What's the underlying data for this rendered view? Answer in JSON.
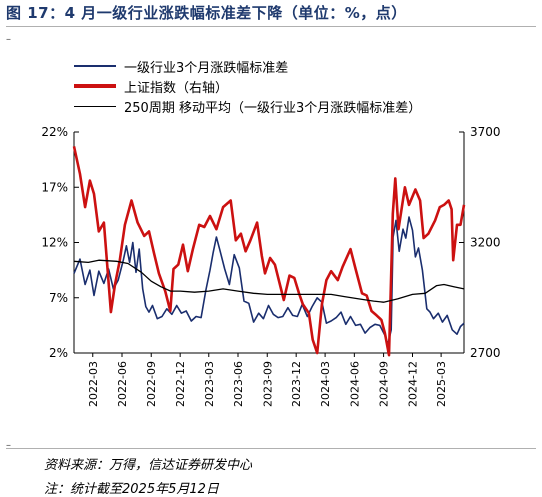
{
  "header": {
    "title": "图 17：4 月一级行业涨跌幅标准差下降（单位：%，点）"
  },
  "footer": {
    "source": "资料来源：万得，信达证券研发中心",
    "note": "注：统计截至2025年5月12日"
  },
  "colors": {
    "title": "#1f3a6e",
    "std_series": "#1a2e6e",
    "index_series": "#cc1111",
    "ma_series": "#000000"
  },
  "chart_data": {
    "type": "line",
    "title": "",
    "legend": {
      "placement": "top-left",
      "entries": [
        "一级行业3个月涨跌幅标准差",
        "上证指数（右轴）",
        "250周期 移动平均（一级行业3个月涨跌幅标准差）"
      ]
    },
    "x_ticks": [
      "2022-03",
      "2022-06",
      "2022-09",
      "2022-12",
      "2023-03",
      "2023-06",
      "2023-09",
      "2023-12",
      "2024-03",
      "2024-06",
      "2024-09",
      "2024-12",
      "2025-03"
    ],
    "y_left": {
      "ylim": [
        2,
        22
      ],
      "ticks": [
        2,
        7,
        12,
        17,
        22
      ],
      "tick_labels": [
        "2%",
        "7%",
        "12%",
        "17%",
        "22%"
      ]
    },
    "y_right": {
      "ylim": [
        2700,
        3700
      ],
      "ticks": [
        2700,
        3200,
        3700
      ],
      "tick_labels": [
        "2700",
        "3200",
        "3700"
      ]
    },
    "x_range": [
      "2022-01-01",
      "2025-05-12"
    ],
    "series": [
      {
        "name": "一级行业3个月涨跌幅标准差",
        "axis": "left",
        "color": "#1a2e6e",
        "points": [
          [
            "2022-01-01",
            9.2
          ],
          [
            "2022-01-20",
            10.5
          ],
          [
            "2022-02-05",
            8.2
          ],
          [
            "2022-02-20",
            9.5
          ],
          [
            "2022-03-05",
            7.2
          ],
          [
            "2022-03-20",
            9.4
          ],
          [
            "2022-04-05",
            8.3
          ],
          [
            "2022-04-20",
            9.6
          ],
          [
            "2022-05-05",
            7.8
          ],
          [
            "2022-05-20",
            8.6
          ],
          [
            "2022-06-05",
            10.4
          ],
          [
            "2022-06-15",
            11.7
          ],
          [
            "2022-06-25",
            10.2
          ],
          [
            "2022-07-05",
            12.0
          ],
          [
            "2022-07-15",
            9.3
          ],
          [
            "2022-07-25",
            11.4
          ],
          [
            "2022-08-05",
            7.8
          ],
          [
            "2022-08-15",
            6.2
          ],
          [
            "2022-08-25",
            5.7
          ],
          [
            "2022-09-05",
            6.3
          ],
          [
            "2022-09-20",
            5.1
          ],
          [
            "2022-10-05",
            5.3
          ],
          [
            "2022-10-20",
            6.0
          ],
          [
            "2022-11-05",
            5.5
          ],
          [
            "2022-11-20",
            6.3
          ],
          [
            "2022-12-05",
            5.6
          ],
          [
            "2022-12-20",
            5.8
          ],
          [
            "2023-01-05",
            4.9
          ],
          [
            "2023-01-20",
            5.3
          ],
          [
            "2023-02-05",
            5.2
          ],
          [
            "2023-02-20",
            7.7
          ],
          [
            "2023-03-05",
            9.5
          ],
          [
            "2023-03-15",
            11.1
          ],
          [
            "2023-03-25",
            12.5
          ],
          [
            "2023-04-05",
            11.3
          ],
          [
            "2023-04-20",
            9.6
          ],
          [
            "2023-05-05",
            8.2
          ],
          [
            "2023-05-20",
            10.9
          ],
          [
            "2023-06-05",
            9.7
          ],
          [
            "2023-06-20",
            6.7
          ],
          [
            "2023-07-05",
            6.5
          ],
          [
            "2023-07-20",
            4.8
          ],
          [
            "2023-08-05",
            5.6
          ],
          [
            "2023-08-20",
            5.1
          ],
          [
            "2023-09-05",
            6.3
          ],
          [
            "2023-09-20",
            5.5
          ],
          [
            "2023-10-05",
            5.2
          ],
          [
            "2023-10-20",
            5.3
          ],
          [
            "2023-11-05",
            6.1
          ],
          [
            "2023-11-20",
            5.4
          ],
          [
            "2023-12-05",
            5.3
          ],
          [
            "2023-12-20",
            6.4
          ],
          [
            "2024-01-05",
            5.3
          ],
          [
            "2024-01-20",
            6.2
          ],
          [
            "2024-02-05",
            7.0
          ],
          [
            "2024-02-20",
            6.6
          ],
          [
            "2024-03-05",
            4.7
          ],
          [
            "2024-03-20",
            4.9
          ],
          [
            "2024-04-05",
            5.2
          ],
          [
            "2024-04-20",
            5.7
          ],
          [
            "2024-05-05",
            4.6
          ],
          [
            "2024-05-20",
            5.3
          ],
          [
            "2024-06-05",
            4.5
          ],
          [
            "2024-06-20",
            4.6
          ],
          [
            "2024-07-05",
            3.8
          ],
          [
            "2024-07-20",
            4.3
          ],
          [
            "2024-08-05",
            4.6
          ],
          [
            "2024-08-20",
            4.5
          ],
          [
            "2024-09-05",
            3.6
          ],
          [
            "2024-09-15",
            2.8
          ],
          [
            "2024-09-25",
            4.1
          ],
          [
            "2024-10-01",
            12.5
          ],
          [
            "2024-10-10",
            14.0
          ],
          [
            "2024-10-20",
            11.2
          ],
          [
            "2024-11-01",
            13.2
          ],
          [
            "2024-11-10",
            12.4
          ],
          [
            "2024-11-20",
            14.3
          ],
          [
            "2024-12-01",
            13.1
          ],
          [
            "2024-12-10",
            10.7
          ],
          [
            "2024-12-20",
            11.5
          ],
          [
            "2025-01-01",
            9.5
          ],
          [
            "2025-01-15",
            6.0
          ],
          [
            "2025-01-25",
            5.7
          ],
          [
            "2025-02-05",
            5.1
          ],
          [
            "2025-02-20",
            5.6
          ],
          [
            "2025-03-05",
            4.8
          ],
          [
            "2025-03-20",
            5.4
          ],
          [
            "2025-04-05",
            4.1
          ],
          [
            "2025-04-20",
            3.7
          ],
          [
            "2025-05-01",
            4.4
          ],
          [
            "2025-05-12",
            4.7
          ]
        ]
      },
      {
        "name": "上证指数（右轴）",
        "axis": "right",
        "color": "#cc1111",
        "points": [
          [
            "2022-01-01",
            3635
          ],
          [
            "2022-01-20",
            3510
          ],
          [
            "2022-02-05",
            3360
          ],
          [
            "2022-02-20",
            3480
          ],
          [
            "2022-03-05",
            3420
          ],
          [
            "2022-03-20",
            3250
          ],
          [
            "2022-04-05",
            3290
          ],
          [
            "2022-04-27",
            2885
          ],
          [
            "2022-05-10",
            3010
          ],
          [
            "2022-05-25",
            3120
          ],
          [
            "2022-06-10",
            3280
          ],
          [
            "2022-07-01",
            3390
          ],
          [
            "2022-07-20",
            3290
          ],
          [
            "2022-08-10",
            3230
          ],
          [
            "2022-08-25",
            3250
          ],
          [
            "2022-09-10",
            3150
          ],
          [
            "2022-09-25",
            3060
          ],
          [
            "2022-10-15",
            2980
          ],
          [
            "2022-10-31",
            2890
          ],
          [
            "2022-11-10",
            3080
          ],
          [
            "2022-11-25",
            3100
          ],
          [
            "2022-12-10",
            3190
          ],
          [
            "2022-12-25",
            3070
          ],
          [
            "2023-01-10",
            3170
          ],
          [
            "2023-01-30",
            3280
          ],
          [
            "2023-02-15",
            3270
          ],
          [
            "2023-03-05",
            3320
          ],
          [
            "2023-03-25",
            3260
          ],
          [
            "2023-04-15",
            3360
          ],
          [
            "2023-05-09",
            3390
          ],
          [
            "2023-05-25",
            3210
          ],
          [
            "2023-06-10",
            3240
          ],
          [
            "2023-06-25",
            3160
          ],
          [
            "2023-07-10",
            3210
          ],
          [
            "2023-07-31",
            3290
          ],
          [
            "2023-08-15",
            3140
          ],
          [
            "2023-08-25",
            3060
          ],
          [
            "2023-09-10",
            3130
          ],
          [
            "2023-09-25",
            3100
          ],
          [
            "2023-10-23",
            2940
          ],
          [
            "2023-11-10",
            3050
          ],
          [
            "2023-11-25",
            3040
          ],
          [
            "2023-12-10",
            2970
          ],
          [
            "2023-12-22",
            2920
          ],
          [
            "2024-01-10",
            2880
          ],
          [
            "2024-01-22",
            2760
          ],
          [
            "2024-02-05",
            2700
          ],
          [
            "2024-02-20",
            2920
          ],
          [
            "2024-03-05",
            3030
          ],
          [
            "2024-03-20",
            3070
          ],
          [
            "2024-04-10",
            3030
          ],
          [
            "2024-04-25",
            3090
          ],
          [
            "2024-05-20",
            3170
          ],
          [
            "2024-06-05",
            3080
          ],
          [
            "2024-06-25",
            2970
          ],
          [
            "2024-07-10",
            2960
          ],
          [
            "2024-07-25",
            2890
          ],
          [
            "2024-08-10",
            2870
          ],
          [
            "2024-08-25",
            2850
          ],
          [
            "2024-09-05",
            2790
          ],
          [
            "2024-09-18",
            2690
          ],
          [
            "2024-09-30",
            3330
          ],
          [
            "2024-10-08",
            3490
          ],
          [
            "2024-10-18",
            3260
          ],
          [
            "2024-11-07",
            3450
          ],
          [
            "2024-11-20",
            3370
          ],
          [
            "2024-12-10",
            3440
          ],
          [
            "2024-12-25",
            3390
          ],
          [
            "2025-01-05",
            3220
          ],
          [
            "2025-01-20",
            3240
          ],
          [
            "2025-02-10",
            3300
          ],
          [
            "2025-02-25",
            3360
          ],
          [
            "2025-03-10",
            3370
          ],
          [
            "2025-03-25",
            3390
          ],
          [
            "2025-04-03",
            3350
          ],
          [
            "2025-04-08",
            3120
          ],
          [
            "2025-04-20",
            3280
          ],
          [
            "2025-05-01",
            3280
          ],
          [
            "2025-05-12",
            3370
          ]
        ]
      },
      {
        "name": "250周期 移动平均（一级行业3个月涨跌幅标准差）",
        "axis": "left",
        "color": "#000000",
        "points": [
          [
            "2022-01-01",
            10.3
          ],
          [
            "2022-02-15",
            10.2
          ],
          [
            "2022-03-20",
            10.4
          ],
          [
            "2022-05-15",
            10.3
          ],
          [
            "2022-06-20",
            10.1
          ],
          [
            "2022-08-01",
            9.3
          ],
          [
            "2022-09-01",
            8.5
          ],
          [
            "2022-10-01",
            8.0
          ],
          [
            "2022-11-01",
            7.6
          ],
          [
            "2022-12-01",
            7.6
          ],
          [
            "2023-01-15",
            7.5
          ],
          [
            "2023-03-01",
            7.6
          ],
          [
            "2023-04-15",
            7.8
          ],
          [
            "2023-06-01",
            7.6
          ],
          [
            "2023-07-20",
            7.4
          ],
          [
            "2023-09-01",
            7.3
          ],
          [
            "2023-11-01",
            7.3
          ],
          [
            "2023-12-20",
            7.3
          ],
          [
            "2024-02-01",
            7.3
          ],
          [
            "2024-03-20",
            7.3
          ],
          [
            "2024-05-01",
            7.1
          ],
          [
            "2024-06-15",
            6.9
          ],
          [
            "2024-08-01",
            6.7
          ],
          [
            "2024-09-01",
            6.6
          ],
          [
            "2024-10-15",
            6.9
          ],
          [
            "2024-12-01",
            7.3
          ],
          [
            "2025-01-10",
            7.4
          ],
          [
            "2025-02-15",
            8.1
          ],
          [
            "2025-03-10",
            8.2
          ],
          [
            "2025-04-10",
            8.0
          ],
          [
            "2025-05-12",
            7.8
          ]
        ]
      }
    ]
  }
}
